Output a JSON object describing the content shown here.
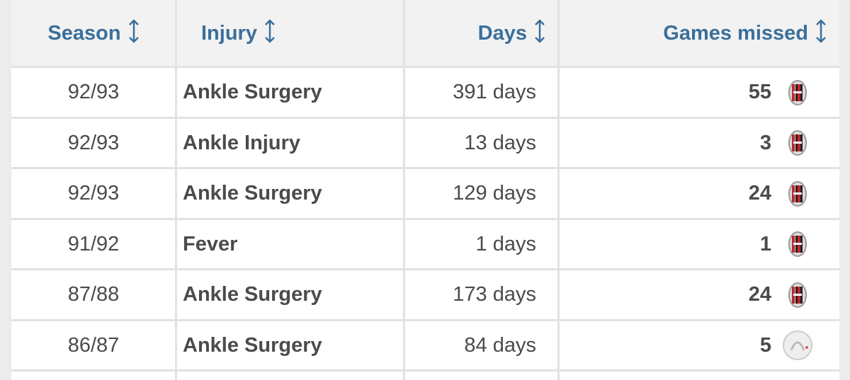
{
  "table": {
    "headers": [
      "Season",
      "Injury",
      "Days",
      "Games missed"
    ],
    "rows": [
      [
        "92/93",
        "Ankle Surgery",
        "391 days",
        55
      ],
      [
        "92/93",
        "Ankle Injury",
        "13 days",
        3
      ],
      [
        "92/93",
        "Ankle Surgery",
        "129 days",
        24
      ],
      [
        "91/92",
        "Fever",
        "1 days",
        1
      ],
      [
        "87/88",
        "Ankle Surgery",
        "173 days",
        24
      ],
      [
        "86/87",
        "Ankle Surgery",
        "84 days",
        5
      ]
    ]
  }
}
